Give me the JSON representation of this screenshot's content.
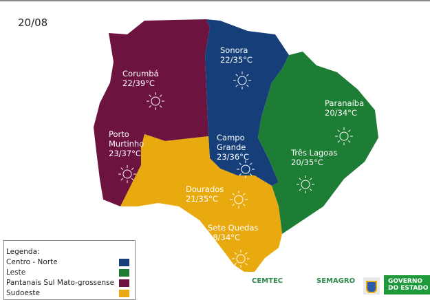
{
  "date": "20/08",
  "colors": {
    "centro_norte": "#163f7a",
    "leste": "#1e7d34",
    "pantanais": "#6d1340",
    "sudoeste": "#e9aa10"
  },
  "regions": [
    {
      "city": "Corumbá",
      "temp": "22/39°C",
      "icon": "sun-icon"
    },
    {
      "city": "Porto Murtinho",
      "city_lines": [
        "Porto",
        "Murtinho"
      ],
      "temp": "23/37°C",
      "icon": "sun-icon"
    },
    {
      "city": "Sonora",
      "temp": "22/35°C",
      "icon": "sun-icon"
    },
    {
      "city": "Campo Grande",
      "city_lines": [
        "Campo",
        "Grande"
      ],
      "temp": "23/36°C",
      "icon": "sun-icon"
    },
    {
      "city": "Paranaíba",
      "temp": "20/34°C",
      "icon": "sun-icon"
    },
    {
      "city": "Três Lagoas",
      "temp": "20/35°C",
      "icon": "sun-icon"
    },
    {
      "city": "Dourados",
      "temp": "21/35°C",
      "icon": "sun-icon"
    },
    {
      "city": "Sete Quedas",
      "temp": "18/34°C",
      "icon": "sun-icon"
    }
  ],
  "legend": {
    "title": "Legenda:",
    "items": [
      "Centro - Norte",
      "Leste",
      "Pantanais Sul Mato-grossense",
      "Sudoeste"
    ]
  },
  "logos": {
    "cemtec": "CEMTEC",
    "semagro": "SEMAGRO",
    "governo": [
      "GOVERNO",
      "DO ESTADO"
    ]
  }
}
